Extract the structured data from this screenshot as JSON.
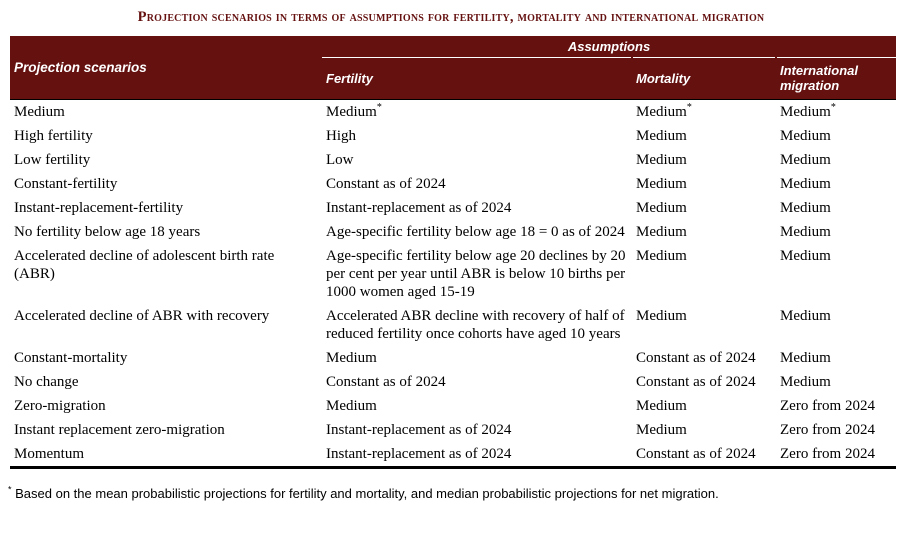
{
  "title": "Projection scenarios in terms of assumptions for fertility, mortality and international migration",
  "colors": {
    "header_background": "#641110",
    "header_text": "#ffffff",
    "title_text": "#641110",
    "body_text": "#000000"
  },
  "table": {
    "scenario_header": "Projection scenarios",
    "assumptions_header": "Assumptions",
    "columns": [
      "Fertility",
      "Mortality",
      "International migration"
    ],
    "rows": [
      {
        "cells": [
          {
            "text": "Medium"
          },
          {
            "text": "Medium",
            "sup": "*"
          },
          {
            "text": "Medium",
            "sup": "*"
          },
          {
            "text": "Medium",
            "sup": "*"
          }
        ]
      },
      {
        "cells": [
          {
            "text": "High fertility"
          },
          {
            "text": "High"
          },
          {
            "text": "Medium"
          },
          {
            "text": "Medium"
          }
        ]
      },
      {
        "cells": [
          {
            "text": "Low fertility"
          },
          {
            "text": "Low"
          },
          {
            "text": "Medium"
          },
          {
            "text": "Medium"
          }
        ]
      },
      {
        "cells": [
          {
            "text": "Constant-fertility"
          },
          {
            "text": "Constant as of 2024"
          },
          {
            "text": "Medium"
          },
          {
            "text": "Medium"
          }
        ]
      },
      {
        "cells": [
          {
            "text": "Instant-replacement-fertility"
          },
          {
            "text": "Instant-replacement as of 2024"
          },
          {
            "text": "Medium"
          },
          {
            "text": "Medium"
          }
        ]
      },
      {
        "cells": [
          {
            "text": "No fertility below age 18 years"
          },
          {
            "text": "Age-specific fertility below age 18 = 0 as of 2024"
          },
          {
            "text": "Medium"
          },
          {
            "text": "Medium"
          }
        ]
      },
      {
        "cells": [
          {
            "text": "Accelerated decline of adolescent birth rate (ABR)"
          },
          {
            "text": "Age-specific fertility below age 20 declines by 20 per cent per year until ABR is below 10 births per 1000 women aged 15-19"
          },
          {
            "text": "Medium"
          },
          {
            "text": "Medium"
          }
        ]
      },
      {
        "cells": [
          {
            "text": "Accelerated decline of ABR with recovery"
          },
          {
            "text": "Accelerated ABR decline with recovery of half of reduced fertility once cohorts have aged 10 years"
          },
          {
            "text": "Medium"
          },
          {
            "text": "Medium"
          }
        ]
      },
      {
        "cells": [
          {
            "text": "Constant-mortality"
          },
          {
            "text": "Medium"
          },
          {
            "text": "Constant as of 2024"
          },
          {
            "text": "Medium"
          }
        ]
      },
      {
        "cells": [
          {
            "text": "No change"
          },
          {
            "text": "Constant as of 2024"
          },
          {
            "text": "Constant as of 2024"
          },
          {
            "text": "Medium"
          }
        ]
      },
      {
        "cells": [
          {
            "text": "Zero-migration"
          },
          {
            "text": "Medium"
          },
          {
            "text": "Medium"
          },
          {
            "text": "Zero from 2024"
          }
        ]
      },
      {
        "cells": [
          {
            "text": "Instant replacement zero-migration"
          },
          {
            "text": "Instant-replacement as of 2024"
          },
          {
            "text": "Medium"
          },
          {
            "text": "Zero from 2024"
          }
        ]
      },
      {
        "cells": [
          {
            "text": "Momentum"
          },
          {
            "text": "Instant-replacement as of 2024"
          },
          {
            "text": "Constant as of 2024"
          },
          {
            "text": "Zero from 2024"
          }
        ]
      }
    ]
  },
  "footnote": {
    "marker": "*",
    "text": "Based on the mean probabilistic projections for fertility and mortality, and median probabilistic projections for net migration."
  }
}
